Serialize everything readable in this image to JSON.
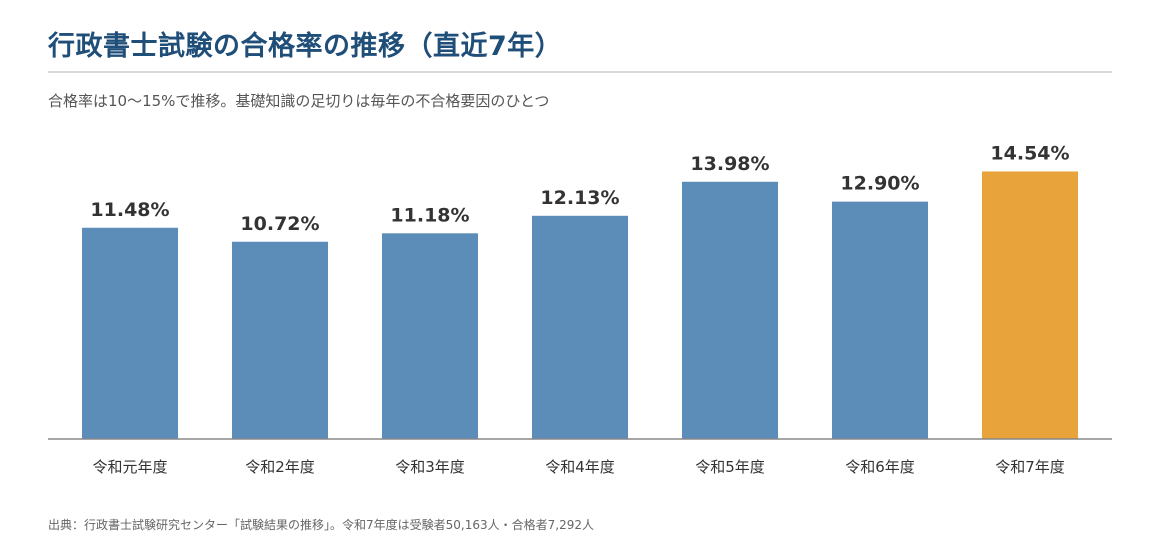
{
  "title": "行政書士試験の合格率の推移（直近7年）",
  "subtitle": "合格率は10〜15%で推移。基礎知識の足切りは毎年の不合格要因のひとつ",
  "source": "出典：行政書士試験研究センター「試験結果の推移」。令和7年度は受験者50,163人・合格者7,292人",
  "colors": {
    "bar": "#5b8db8",
    "highlight": "#e8a33a",
    "title": "#1f4e79",
    "axis": "#888888",
    "label": "#333333"
  },
  "chart_data": {
    "type": "bar",
    "categories": [
      "令和元年度",
      "令和2年度",
      "令和3年度",
      "令和4年度",
      "令和5年度",
      "令和6年度",
      "令和7年度"
    ],
    "values": [
      11.48,
      10.72,
      11.18,
      12.13,
      13.98,
      12.9,
      14.54
    ],
    "value_labels": [
      "11.48%",
      "10.72%",
      "11.18%",
      "12.13%",
      "13.98%",
      "12.90%",
      "14.54%"
    ],
    "highlight_index": 6,
    "ylim": [
      0,
      16.25
    ],
    "grid": false,
    "xlabel": "",
    "ylabel": ""
  }
}
